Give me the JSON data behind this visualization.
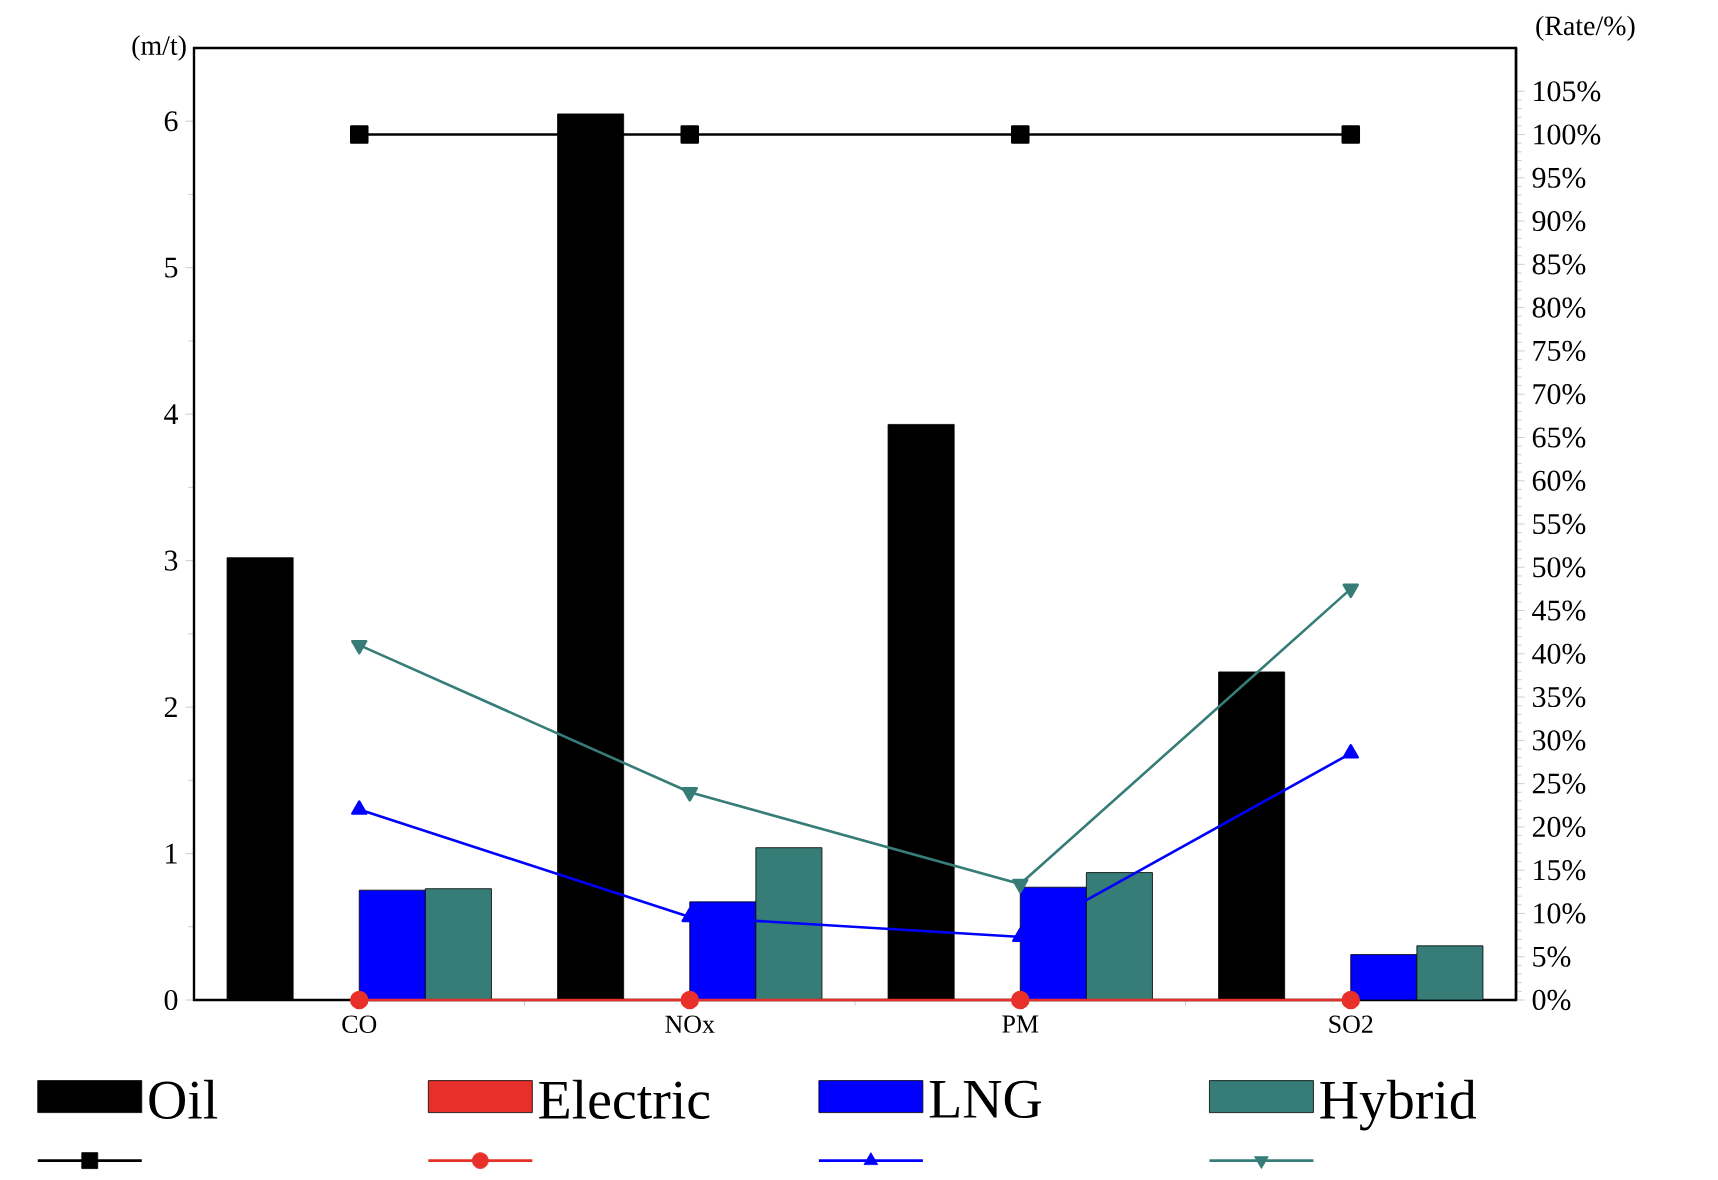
{
  "chart_data": {
    "type": "bar",
    "categories": [
      "CO",
      "NOx",
      "PM",
      "SO2"
    ],
    "ylabel": "(m/t)",
    "y2label": "(Rate/%)",
    "ylim": [
      0,
      6.5
    ],
    "yticks": [
      0,
      1,
      2,
      3,
      4,
      5,
      6
    ],
    "y2lim": [
      0,
      110
    ],
    "y2ticks": [
      {
        "value": 0,
        "label": "0%"
      },
      {
        "value": 5,
        "label": "5%"
      },
      {
        "value": 10,
        "label": "10%"
      },
      {
        "value": 15,
        "label": "15%"
      },
      {
        "value": 20,
        "label": "20%"
      },
      {
        "value": 25,
        "label": "25%"
      },
      {
        "value": 30,
        "label": "30%"
      },
      {
        "value": 35,
        "label": "35%"
      },
      {
        "value": 40,
        "label": "40%"
      },
      {
        "value": 45,
        "label": "45%"
      },
      {
        "value": 50,
        "label": "50%"
      },
      {
        "value": 55,
        "label": "55%"
      },
      {
        "value": 60,
        "label": "60%"
      },
      {
        "value": 65,
        "label": "65%"
      },
      {
        "value": 70,
        "label": "70%"
      },
      {
        "value": 75,
        "label": "75%"
      },
      {
        "value": 80,
        "label": "80%"
      },
      {
        "value": 85,
        "label": "85%"
      },
      {
        "value": 90,
        "label": "90%"
      },
      {
        "value": 95,
        "label": "95%"
      },
      {
        "value": 100,
        "label": "100%"
      },
      {
        "value": 105,
        "label": "105%"
      }
    ],
    "legend": "bottom",
    "series": [
      {
        "name": "Oil",
        "color": "#000000",
        "values": [
          3.02,
          6.05,
          3.93,
          2.24
        ]
      },
      {
        "name": "Electric",
        "color": "#e8302a",
        "values": [
          0,
          0,
          0,
          0
        ]
      },
      {
        "name": "LNG",
        "color": "#0000ff",
        "values": [
          0.75,
          0.67,
          0.77,
          0.31
        ]
      },
      {
        "name": "Hybrid",
        "color": "#367d78",
        "values": [
          0.76,
          1.04,
          0.87,
          0.37
        ]
      },
      {
        "type": "line",
        "axis": "y2",
        "marker": "square",
        "color": "#000000",
        "values": [
          100,
          100,
          100,
          100
        ]
      },
      {
        "type": "line",
        "axis": "y2",
        "marker": "circle",
        "color": "#e8302a",
        "values": [
          0,
          0,
          0,
          0
        ]
      },
      {
        "type": "line",
        "axis": "y2",
        "marker": "triangle",
        "color": "#0000ff",
        "values": [
          22,
          9.6,
          7.3,
          28.5
        ]
      },
      {
        "type": "line",
        "axis": "y2",
        "marker": "triangle-down",
        "color": "#367d78",
        "values": [
          41,
          24,
          13.4,
          47.5
        ]
      }
    ]
  }
}
